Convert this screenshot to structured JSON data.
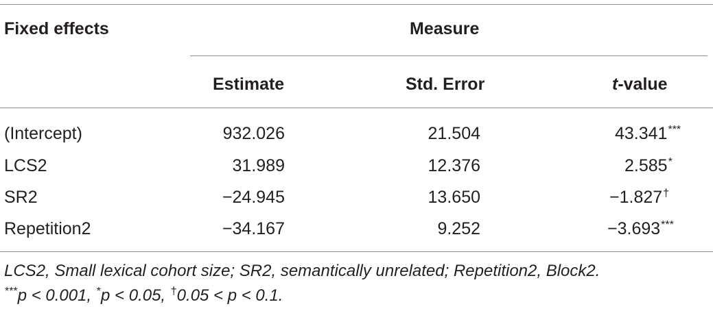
{
  "table": {
    "header_col": "Fixed effects",
    "header_group": "Measure",
    "columns": [
      "Estimate",
      "Std. Error",
      "t-value"
    ],
    "tvalue_prefix": "t",
    "tvalue_suffix": "-value",
    "rows": [
      {
        "label": "(Intercept)",
        "estimate": "932.026",
        "se": "21.504",
        "t": "43.341",
        "sig": "***"
      },
      {
        "label": "LCS2",
        "estimate": "31.989",
        "se": "12.376",
        "t": "2.585",
        "sig": "*"
      },
      {
        "label": "SR2",
        "estimate": "−24.945",
        "se": "13.650",
        "t": "−1.827",
        "sig": "†"
      },
      {
        "label": "Repetition2",
        "estimate": "−34.167",
        "se": "9.252",
        "t": "−3.693",
        "sig": "***"
      }
    ]
  },
  "footnote": {
    "line1": "LCS2, Small lexical cohort size; SR2, semantically unrelated; Repetition2, Block2.",
    "line2_a_sup": "***",
    "line2_a": "p < 0.001, ",
    "line2_b_sup": "*",
    "line2_b": "p < 0.05, ",
    "line2_c_sup": "†",
    "line2_c": "0.05 < p < 0.1."
  }
}
